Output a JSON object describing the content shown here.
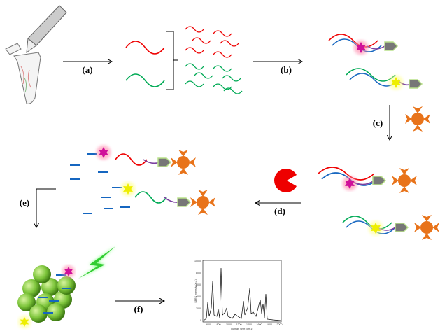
{
  "steps": {
    "a": "(a)",
    "b": "(b)",
    "c": "(c)",
    "d": "(d)",
    "e": "(e)",
    "f": "(f)"
  },
  "spectrum": {
    "y_axis_label": "SERS Intensity (a.u.)",
    "x_axis_label": "Raman Shift (cm-1)",
    "yticks": [
      "10000",
      "8000",
      "6000",
      "4000",
      "2000",
      "0"
    ],
    "xticks": [
      "600",
      "800",
      "1000",
      "1200",
      "1400",
      "1600",
      "1800",
      "2000"
    ]
  }
}
